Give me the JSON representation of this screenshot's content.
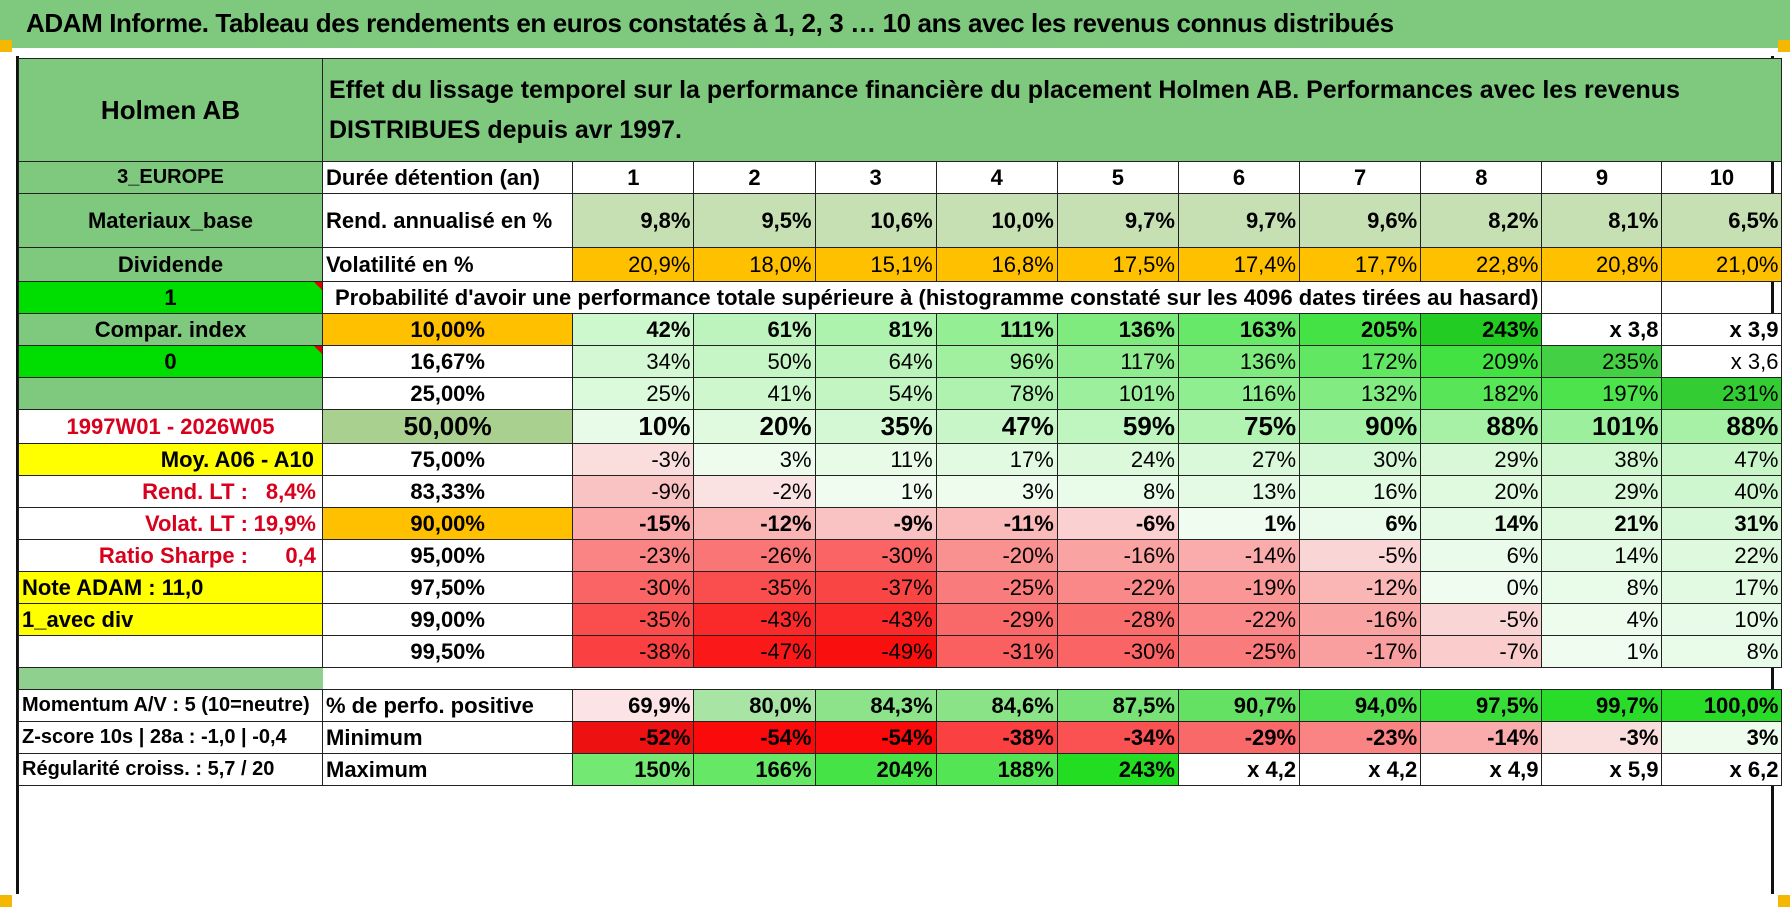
{
  "title": "ADAM Informe. Tableau des rendements en euros constatés à 1, 2, 3 … 10 ans avec les revenus connus distribués",
  "left": {
    "name": "Holmen AB",
    "region": "3_EUROPE",
    "sector": "Materiaux_base",
    "dividend_label": "Dividende",
    "one": "1",
    "compar": "Compar. index",
    "zero": "0",
    "period": "1997W01 - 2026W05",
    "moy": "Moy. A06 - A10",
    "rend_label": "Rend. LT :",
    "rend_value": "8,4%",
    "volat_label": "Volat. LT :",
    "volat_value": "19,9%",
    "sharpe_label": "Ratio Sharpe :",
    "sharpe_value": "0,4",
    "note": "Note ADAM : 11,0",
    "avec_div": "1_avec div",
    "momentum": "Momentum A/V : 5 (10=neutre)",
    "zscore": "Z-score 10s | 28a : -1,0 | -0,4",
    "regularite": "Régularité croiss. : 5,7 / 20"
  },
  "header_text": "Effet du lissage temporel sur la performance financière du placement Holmen AB. Performances avec les revenus DISTRIBUES depuis avr 1997.",
  "duration_label": "Durée détention (an)",
  "years": [
    "1",
    "2",
    "3",
    "4",
    "5",
    "6",
    "7",
    "8",
    "9",
    "10"
  ],
  "rend": {
    "label": "Rend. annualisé en %",
    "values": [
      "9,8%",
      "9,5%",
      "10,6%",
      "10,0%",
      "9,7%",
      "9,7%",
      "9,6%",
      "8,2%",
      "8,1%",
      "6,5%"
    ]
  },
  "vol": {
    "label": "Volatilité en %",
    "values": [
      "20,9%",
      "18,0%",
      "15,1%",
      "16,8%",
      "17,5%",
      "17,4%",
      "17,7%",
      "22,8%",
      "20,8%",
      "21,0%"
    ]
  },
  "proba_text": "Probabilité d'avoir une performance totale supérieure à (histogramme constaté sur les 4096 dates tirées au hasard)",
  "quantiles": [
    {
      "p": "10,00%",
      "values": [
        "42%",
        "61%",
        "81%",
        "111%",
        "136%",
        "163%",
        "205%",
        "243%",
        "x 3,8",
        "x 3,9"
      ]
    },
    {
      "p": "16,67%",
      "values": [
        "34%",
        "50%",
        "64%",
        "96%",
        "117%",
        "136%",
        "172%",
        "209%",
        "235%",
        "x 3,6"
      ]
    },
    {
      "p": "25,00%",
      "values": [
        "25%",
        "41%",
        "54%",
        "78%",
        "101%",
        "116%",
        "132%",
        "182%",
        "197%",
        "231%"
      ]
    },
    {
      "p": "50,00%",
      "values": [
        "10%",
        "20%",
        "35%",
        "47%",
        "59%",
        "75%",
        "90%",
        "88%",
        "101%",
        "88%"
      ]
    },
    {
      "p": "75,00%",
      "values": [
        "-3%",
        "3%",
        "11%",
        "17%",
        "24%",
        "27%",
        "30%",
        "29%",
        "38%",
        "47%"
      ]
    },
    {
      "p": "83,33%",
      "values": [
        "-9%",
        "-2%",
        "1%",
        "3%",
        "8%",
        "13%",
        "16%",
        "20%",
        "29%",
        "40%"
      ]
    },
    {
      "p": "90,00%",
      "values": [
        "-15%",
        "-12%",
        "-9%",
        "-11%",
        "-6%",
        "1%",
        "6%",
        "14%",
        "21%",
        "31%"
      ]
    },
    {
      "p": "95,00%",
      "values": [
        "-23%",
        "-26%",
        "-30%",
        "-20%",
        "-16%",
        "-14%",
        "-5%",
        "6%",
        "14%",
        "22%"
      ]
    },
    {
      "p": "97,50%",
      "values": [
        "-30%",
        "-35%",
        "-37%",
        "-25%",
        "-22%",
        "-19%",
        "-12%",
        "0%",
        "8%",
        "17%"
      ]
    },
    {
      "p": "99,00%",
      "values": [
        "-35%",
        "-43%",
        "-43%",
        "-29%",
        "-28%",
        "-22%",
        "-16%",
        "-5%",
        "4%",
        "10%"
      ]
    },
    {
      "p": "99,50%",
      "values": [
        "-38%",
        "-47%",
        "-49%",
        "-31%",
        "-30%",
        "-25%",
        "-17%",
        "-7%",
        "1%",
        "8%"
      ]
    }
  ],
  "positive": {
    "label": "% de perfo. positive",
    "values": [
      "69,9%",
      "80,0%",
      "84,3%",
      "84,6%",
      "87,5%",
      "90,7%",
      "94,0%",
      "97,5%",
      "99,7%",
      "100,0%"
    ]
  },
  "minimum": {
    "label": "Minimum",
    "values": [
      "-52%",
      "-54%",
      "-54%",
      "-38%",
      "-34%",
      "-29%",
      "-23%",
      "-14%",
      "-3%",
      "3%"
    ]
  },
  "maximum": {
    "label": "Maximum",
    "values": [
      "150%",
      "166%",
      "204%",
      "188%",
      "243%",
      "x 4,2",
      "x 4,2",
      "x 4,9",
      "x 5,9",
      "x 6,2"
    ]
  },
  "colors": {
    "header_green": "#7ec97e",
    "bright_green": "#00dd00",
    "orange": "#ffc000",
    "yellow": "#ffff00",
    "olive_green": "#a9d08e",
    "red_text": "#d8001c"
  }
}
